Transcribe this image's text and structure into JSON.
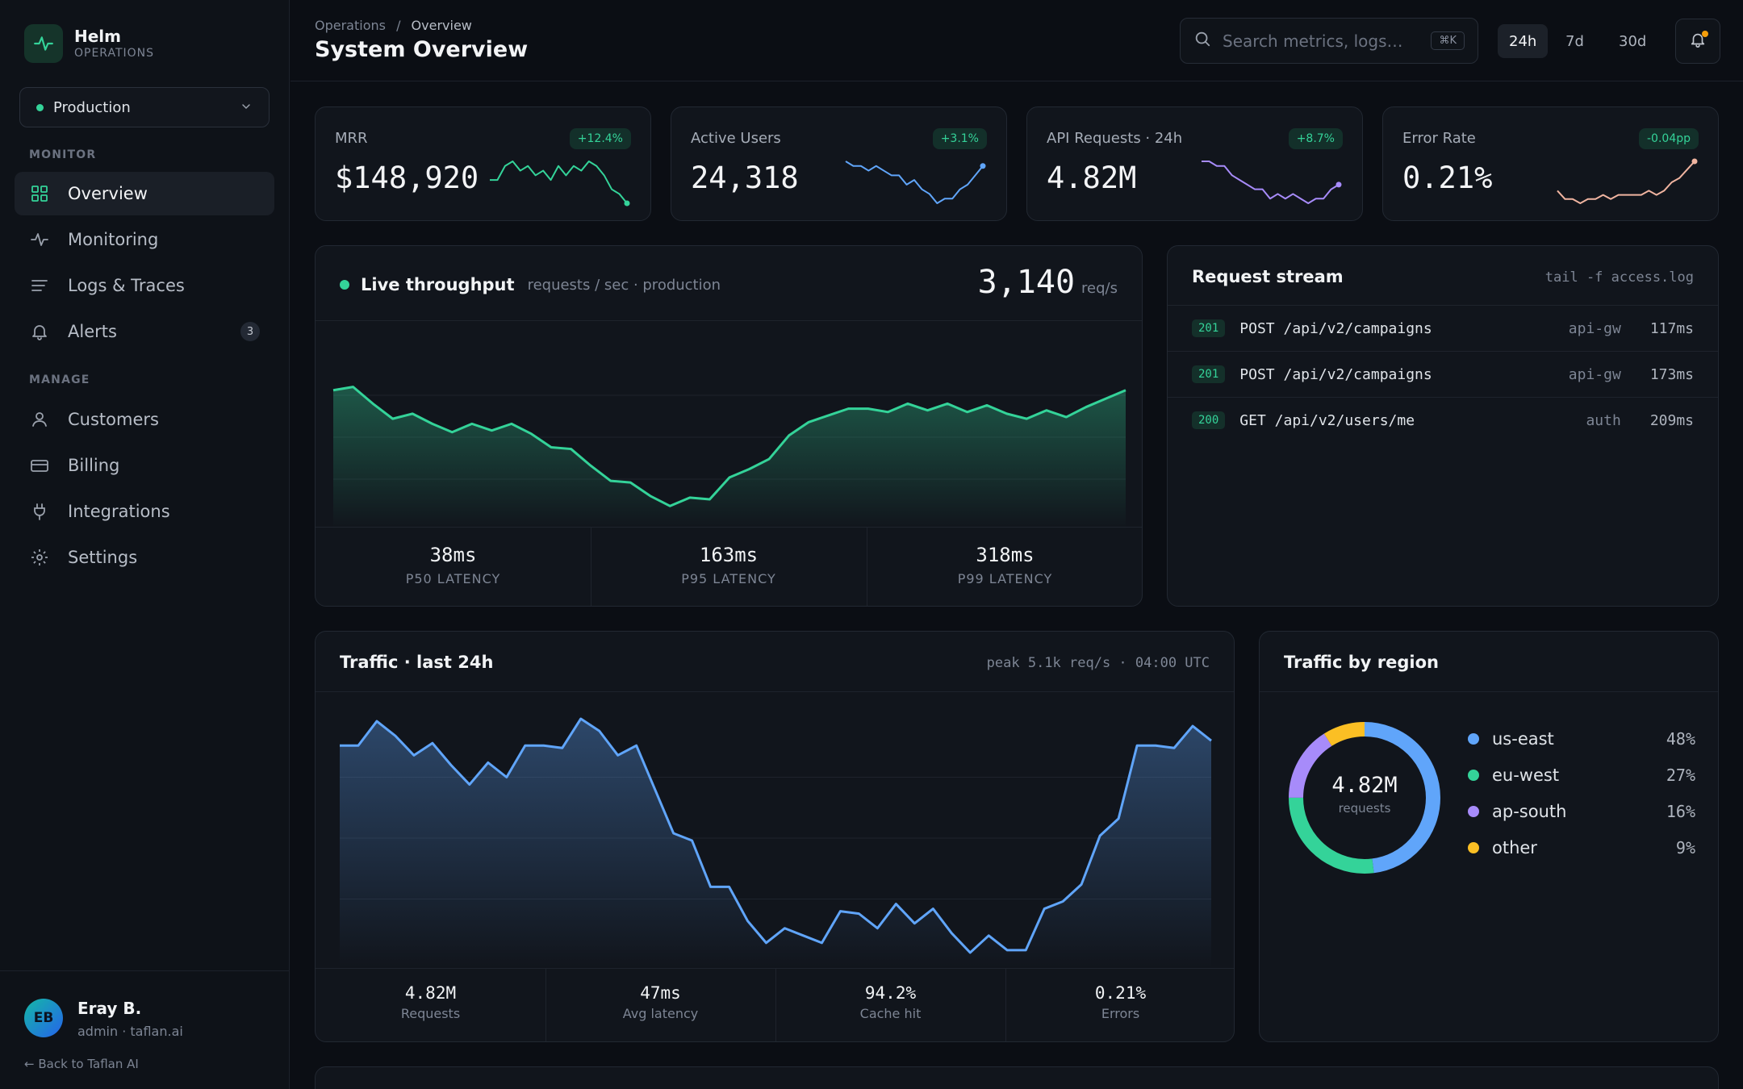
{
  "brand": {
    "name": "Helm",
    "subtitle": "OPERATIONS"
  },
  "environment": {
    "label": "Production",
    "status_color": "#34d399"
  },
  "nav": {
    "monitor_label": "MONITOR",
    "manage_label": "MANAGE",
    "items": [
      {
        "label": "Overview",
        "icon": "grid-icon",
        "active": true
      },
      {
        "label": "Monitoring",
        "icon": "pulse-icon"
      },
      {
        "label": "Logs & Traces",
        "icon": "lines-icon"
      },
      {
        "label": "Alerts",
        "icon": "bell-icon",
        "badge": "3"
      },
      {
        "label": "Customers",
        "icon": "user-icon"
      },
      {
        "label": "Billing",
        "icon": "card-icon"
      },
      {
        "label": "Integrations",
        "icon": "plug-icon"
      },
      {
        "label": "Settings",
        "icon": "gear-icon"
      }
    ]
  },
  "user": {
    "initials": "EB",
    "name": "Eray B.",
    "role": "admin · taflan.ai",
    "back_link": "← Back to Taflan AI"
  },
  "header": {
    "breadcrumb": [
      "Operations",
      "Overview"
    ],
    "breadcrumb_sep": "/",
    "title": "System Overview",
    "search_placeholder": "Search metrics, logs…",
    "search_shortcut": "⌘K",
    "ranges": [
      "24h",
      "7d",
      "30d"
    ],
    "active_range": "24h"
  },
  "kpis": [
    {
      "label": "MRR",
      "value": "$148,920",
      "delta": "+12.4%",
      "color": "#34d399",
      "spark": [
        6,
        6,
        9,
        10,
        8,
        9,
        7,
        8,
        6,
        9,
        7,
        9,
        8,
        10,
        9,
        7,
        4,
        3,
        1
      ]
    },
    {
      "label": "Active Users",
      "value": "24,318",
      "delta": "+3.1%",
      "color": "#60a5fa",
      "spark": [
        9,
        8,
        8,
        7,
        8,
        7,
        6,
        6,
        4,
        5,
        3,
        2,
        0,
        1,
        1,
        3,
        4,
        6,
        8
      ]
    },
    {
      "label": "API Requests · 24h",
      "value": "4.82M",
      "delta": "+8.7%",
      "color": "#a78bfa",
      "spark": [
        9,
        9,
        8,
        8,
        6,
        5,
        4,
        3,
        3,
        1,
        2,
        1,
        2,
        1,
        0,
        1,
        1,
        3,
        4
      ]
    },
    {
      "label": "Error Rate",
      "value": "0.21%",
      "delta": "-0.04pp",
      "color": "#f0b4a0",
      "spark": [
        2,
        0,
        0,
        -1,
        0,
        0,
        1,
        0,
        1,
        1,
        1,
        1,
        2,
        1,
        2,
        4,
        5,
        7,
        9
      ]
    }
  ],
  "throughput": {
    "title": "Live throughput",
    "subtitle": "requests / sec · production",
    "value": "3,140",
    "unit": "req/s",
    "stats": [
      {
        "value": "38ms",
        "label": "P50 LATENCY"
      },
      {
        "value": "163ms",
        "label": "P95 LATENCY"
      },
      {
        "value": "318ms",
        "label": "P99 LATENCY"
      }
    ]
  },
  "request_stream": {
    "title": "Request stream",
    "command": "tail -f access.log",
    "rows": [
      {
        "code": "201",
        "path": "POST /api/v2/campaigns",
        "service": "api-gw",
        "ms": "117ms"
      },
      {
        "code": "201",
        "path": "POST /api/v2/campaigns",
        "service": "api-gw",
        "ms": "173ms"
      },
      {
        "code": "200",
        "path": "GET /api/v2/users/me",
        "service": "auth",
        "ms": "209ms"
      }
    ]
  },
  "traffic": {
    "title": "Traffic · last 24h",
    "peak": "peak 5.1k req/s · 04:00 UTC",
    "stats": [
      {
        "value": "4.82M",
        "label": "Requests"
      },
      {
        "value": "47ms",
        "label": "Avg latency"
      },
      {
        "value": "94.2%",
        "label": "Cache hit"
      },
      {
        "value": "0.21%",
        "label": "Errors"
      }
    ]
  },
  "region": {
    "title": "Traffic by region",
    "total": "4.82M",
    "total_label": "requests",
    "items": [
      {
        "name": "us-east",
        "pct": "48%",
        "value": 48,
        "color": "#60a5fa"
      },
      {
        "name": "eu-west",
        "pct": "27%",
        "value": 27,
        "color": "#34d399"
      },
      {
        "name": "ap-south",
        "pct": "16%",
        "value": 16,
        "color": "#a78bfa"
      },
      {
        "name": "other",
        "pct": "9%",
        "value": 9,
        "color": "#fbbf24"
      }
    ]
  },
  "chart_data": [
    {
      "type": "area",
      "title": "Live throughput",
      "series": [
        {
          "values": [
            78,
            80,
            70,
            61,
            64,
            58,
            53,
            58,
            54,
            58,
            52,
            44,
            43,
            33,
            24,
            23,
            15,
            9,
            14,
            13,
            26,
            31,
            37,
            51,
            59,
            63,
            67,
            67,
            65,
            70,
            66,
            70,
            65,
            69,
            64,
            61,
            66,
            62,
            68,
            73,
            78
          ]
        }
      ]
    },
    {
      "type": "area",
      "title": "Traffic · last 24h",
      "series": [
        {
          "values": [
            88,
            88,
            98,
            92,
            84,
            89,
            80,
            72,
            81,
            75,
            88,
            88,
            87,
            99,
            94,
            84,
            88,
            70,
            52,
            49,
            30,
            30,
            16,
            7,
            13,
            10,
            7,
            20,
            19,
            13,
            23,
            15,
            21,
            11,
            3,
            10,
            4,
            4,
            21,
            24,
            31,
            51,
            58,
            88,
            88,
            87,
            96,
            90
          ]
        }
      ]
    }
  ]
}
